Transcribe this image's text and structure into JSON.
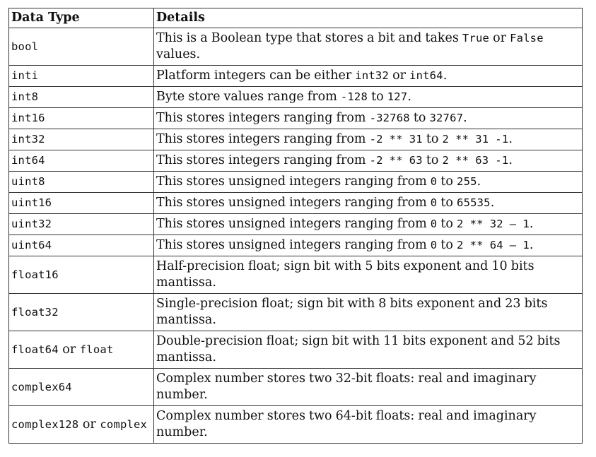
{
  "headers": {
    "col1": "Data Type",
    "col2": "Details"
  },
  "rows": [
    {
      "type": [
        {
          "t": "bool",
          "m": true
        }
      ],
      "details": [
        {
          "t": "This is a Boolean type that stores a bit and takes "
        },
        {
          "t": "True",
          "m": true
        },
        {
          "t": " or "
        },
        {
          "t": "False",
          "m": true
        },
        {
          "t": " values."
        }
      ]
    },
    {
      "type": [
        {
          "t": "inti",
          "m": true
        }
      ],
      "details": [
        {
          "t": "Platform integers can be either "
        },
        {
          "t": "int32",
          "m": true
        },
        {
          "t": " or "
        },
        {
          "t": "int64",
          "m": true
        },
        {
          "t": "."
        }
      ]
    },
    {
      "type": [
        {
          "t": "int8",
          "m": true
        }
      ],
      "details": [
        {
          "t": "Byte store values range from "
        },
        {
          "t": "-128",
          "m": true
        },
        {
          "t": " to "
        },
        {
          "t": "127",
          "m": true
        },
        {
          "t": "."
        }
      ]
    },
    {
      "type": [
        {
          "t": "int16",
          "m": true
        }
      ],
      "details": [
        {
          "t": "This stores integers ranging from "
        },
        {
          "t": "-32768",
          "m": true
        },
        {
          "t": " to "
        },
        {
          "t": "32767",
          "m": true
        },
        {
          "t": "."
        }
      ]
    },
    {
      "type": [
        {
          "t": "int32",
          "m": true
        }
      ],
      "details": [
        {
          "t": "This stores integers ranging from "
        },
        {
          "t": "-2 ** 31",
          "m": true
        },
        {
          "t": " to "
        },
        {
          "t": "2 ** 31 -1",
          "m": true
        },
        {
          "t": "."
        }
      ]
    },
    {
      "type": [
        {
          "t": "int64",
          "m": true
        }
      ],
      "details": [
        {
          "t": "This stores integers ranging from "
        },
        {
          "t": "-2 ** 63",
          "m": true
        },
        {
          "t": " to "
        },
        {
          "t": "2 ** 63 -1",
          "m": true
        },
        {
          "t": "."
        }
      ]
    },
    {
      "type": [
        {
          "t": "uint8",
          "m": true
        }
      ],
      "details": [
        {
          "t": "This stores unsigned integers ranging from "
        },
        {
          "t": "0",
          "m": true
        },
        {
          "t": " to "
        },
        {
          "t": "255",
          "m": true
        },
        {
          "t": "."
        }
      ]
    },
    {
      "type": [
        {
          "t": "uint16",
          "m": true
        }
      ],
      "details": [
        {
          "t": "This stores unsigned integers ranging from "
        },
        {
          "t": "0",
          "m": true
        },
        {
          "t": " to "
        },
        {
          "t": "65535",
          "m": true
        },
        {
          "t": "."
        }
      ]
    },
    {
      "type": [
        {
          "t": "uint32",
          "m": true
        }
      ],
      "details": [
        {
          "t": "This stores unsigned integers ranging from "
        },
        {
          "t": "0",
          "m": true
        },
        {
          "t": " to "
        },
        {
          "t": "2 ** 32 – 1",
          "m": true
        },
        {
          "t": "."
        }
      ]
    },
    {
      "type": [
        {
          "t": "uint64",
          "m": true
        }
      ],
      "details": [
        {
          "t": "This stores unsigned integers ranging from "
        },
        {
          "t": "0",
          "m": true
        },
        {
          "t": " to "
        },
        {
          "t": "2 ** 64 – 1",
          "m": true
        },
        {
          "t": "."
        }
      ]
    },
    {
      "type": [
        {
          "t": "float16",
          "m": true
        }
      ],
      "details": [
        {
          "t": "Half-precision float; sign bit with 5 bits exponent and 10 bits mantissa."
        }
      ]
    },
    {
      "type": [
        {
          "t": "float32",
          "m": true
        }
      ],
      "details": [
        {
          "t": "Single-precision float; sign bit with 8 bits exponent and 23 bits mantissa."
        }
      ]
    },
    {
      "type": [
        {
          "t": "float64",
          "m": true
        },
        {
          "t": " or "
        },
        {
          "t": "float",
          "m": true
        }
      ],
      "details": [
        {
          "t": "Double-precision float; sign bit with 11 bits exponent and 52 bits mantissa."
        }
      ]
    },
    {
      "type": [
        {
          "t": "complex64",
          "m": true
        }
      ],
      "details": [
        {
          "t": "Complex number stores two 32-bit floats: real and imaginary number."
        }
      ]
    },
    {
      "type": [
        {
          "t": "complex128",
          "m": true
        },
        {
          "t": " or "
        },
        {
          "t": "complex",
          "m": true
        }
      ],
      "details": [
        {
          "t": "Complex number stores two 64-bit floats: real and imaginary number."
        }
      ]
    }
  ]
}
